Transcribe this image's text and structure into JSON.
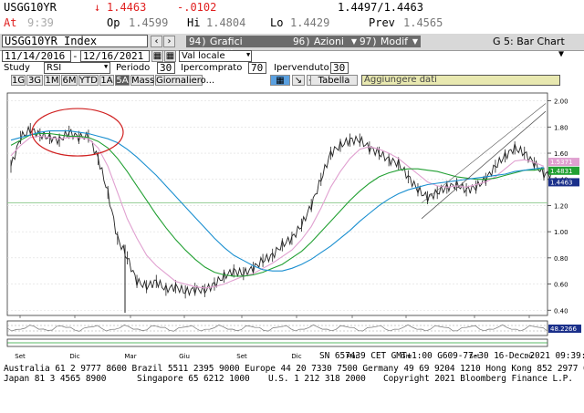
{
  "quote": {
    "ticker": "USGG10YR",
    "change_arrow": "↓",
    "last": "1.4463",
    "change": "-.0102",
    "bid_ask": "1.4497/1.4463",
    "at_label": "At",
    "at_time": "9:39",
    "op_label": "Op",
    "open": "1.4599",
    "hi_label": "Hi",
    "high": "1.4804",
    "lo_label": "Lo",
    "low": "1.4429",
    "prev_label": "Prev",
    "prev": "1.4565"
  },
  "indexbar": {
    "security": "USGG10YR Index",
    "btn_grafici_num": "94)",
    "btn_grafici": "Grafici suggeriti",
    "btn_azioni_num": "96)",
    "btn_azioni": "Azioni",
    "btn_modif_num": "97)",
    "btn_modif": "Modif",
    "chart_name": "G 5: Bar Chart"
  },
  "daterow": {
    "start": "11/14/2016",
    "end": "12/16/2021",
    "currency": "Val locale"
  },
  "studyrow": {
    "study_label": "Study",
    "study": "RSI",
    "periodo_label": "Periodo",
    "periodo": "30",
    "ipercomprato_label": "Ipercomprato",
    "ipercomprato": "70",
    "ipervenduto_label": "Ipervenduto",
    "ipervenduto": "30"
  },
  "tabs": [
    {
      "label": "1G"
    },
    {
      "label": "3G"
    },
    {
      "label": "1M"
    },
    {
      "label": "6M"
    },
    {
      "label": "YTD"
    },
    {
      "label": "1A"
    },
    {
      "label": "5A"
    },
    {
      "label": "Mass"
    },
    {
      "label": "Giornaliero..."
    }
  ],
  "tabella": "Tabella",
  "aggiungere": "Aggiungere dati",
  "chart_data": {
    "type": "line",
    "y_ticks": [
      "2.00",
      "1.80",
      "1.60",
      "1.40",
      "1.20",
      "1.00",
      "0.80",
      "0.60",
      "0.40"
    ],
    "ylim": [
      0.36,
      2.06
    ],
    "x_ticks": [
      "Set",
      "Dic",
      "Mar",
      "Giu",
      "Set",
      "Dic",
      "Mar",
      "Giu",
      "Set",
      "Dic"
    ],
    "year_labels": [
      "2019",
      "2020",
      "2021",
      "2022"
    ],
    "last_labels": [
      "1.5371",
      "1.4831",
      "1.4463"
    ],
    "rsi_label": "48.2266",
    "series": [
      {
        "color": "#222222",
        "values": [
          1.5,
          1.72,
          1.78,
          1.74,
          1.72,
          1.7,
          1.76,
          1.72,
          1.73,
          1.56,
          1.3,
          0.95,
          0.8,
          0.62,
          0.58,
          0.62,
          0.56,
          0.58,
          0.54,
          0.56,
          0.55,
          0.6,
          0.66,
          0.7,
          0.68,
          0.72,
          0.78,
          0.82,
          0.9,
          0.95,
          1.05,
          1.2,
          1.4,
          1.6,
          1.66,
          1.7,
          1.7,
          1.64,
          1.6,
          1.55,
          1.52,
          1.42,
          1.32,
          1.26,
          1.3,
          1.34,
          1.36,
          1.32,
          1.34,
          1.4,
          1.5,
          1.58,
          1.64,
          1.6,
          1.52,
          1.44
        ]
      },
      {
        "color": "#e0a0d0",
        "values": [
          1.58,
          1.66,
          1.72,
          1.73,
          1.72,
          1.71,
          1.72,
          1.72,
          1.71,
          1.64,
          1.5,
          1.3,
          1.1,
          0.95,
          0.82,
          0.74,
          0.68,
          0.62,
          0.6,
          0.58,
          0.57,
          0.58,
          0.6,
          0.63,
          0.66,
          0.68,
          0.72,
          0.76,
          0.81,
          0.86,
          0.94,
          1.04,
          1.18,
          1.34,
          1.46,
          1.56,
          1.63,
          1.65,
          1.63,
          1.6,
          1.56,
          1.5,
          1.44,
          1.38,
          1.35,
          1.34,
          1.35,
          1.34,
          1.36,
          1.38,
          1.42,
          1.48,
          1.54,
          1.55,
          1.53,
          1.5
        ]
      },
      {
        "color": "#22a033",
        "values": [
          1.66,
          1.7,
          1.74,
          1.75,
          1.75,
          1.74,
          1.73,
          1.73,
          1.72,
          1.69,
          1.64,
          1.56,
          1.46,
          1.35,
          1.24,
          1.13,
          1.03,
          0.94,
          0.86,
          0.79,
          0.73,
          0.69,
          0.67,
          0.66,
          0.66,
          0.67,
          0.69,
          0.72,
          0.75,
          0.8,
          0.85,
          0.92,
          1.0,
          1.08,
          1.16,
          1.24,
          1.31,
          1.37,
          1.42,
          1.45,
          1.47,
          1.48,
          1.48,
          1.47,
          1.46,
          1.44,
          1.42,
          1.41,
          1.4,
          1.4,
          1.41,
          1.43,
          1.45,
          1.47,
          1.47,
          1.48
        ]
      },
      {
        "color": "#1a8fd0",
        "values": [
          1.7,
          1.72,
          1.74,
          1.76,
          1.77,
          1.77,
          1.77,
          1.76,
          1.75,
          1.73,
          1.71,
          1.68,
          1.63,
          1.57,
          1.5,
          1.43,
          1.35,
          1.27,
          1.19,
          1.11,
          1.03,
          0.95,
          0.88,
          0.82,
          0.78,
          0.74,
          0.71,
          0.7,
          0.7,
          0.72,
          0.75,
          0.79,
          0.84,
          0.89,
          0.95,
          1.01,
          1.08,
          1.14,
          1.2,
          1.25,
          1.29,
          1.32,
          1.34,
          1.36,
          1.37,
          1.38,
          1.39,
          1.4,
          1.41,
          1.42,
          1.43,
          1.44,
          1.46,
          1.47,
          1.48,
          1.49
        ]
      }
    ]
  },
  "footer": {
    "line1": "SN 657439 CET  GMT+1:00 G609-77-30 16-Dec-2021 09:39:24",
    "line2": "Australia 61 2 9777 8600 Brazil 5511 2395 9000 Europe 44 20 7330 7500 Germany 49 69 9204 1210 Hong Kong 852 2977 6000",
    "line3a": "Japan 81 3 4565 8900",
    "line3b": "Singapore 65 6212 1000",
    "line3c": "U.S. 1 212 318 2000",
    "line3d": "Copyright 2021 Bloomberg Finance L.P."
  },
  "colors": {
    "accent_red": "#e02020",
    "highlight_tab": "#5b5b5b",
    "price": "#222222",
    "ma_short": "#e0a0d0",
    "ma_mid": "#22a033",
    "ma_long": "#1a8fd0"
  }
}
